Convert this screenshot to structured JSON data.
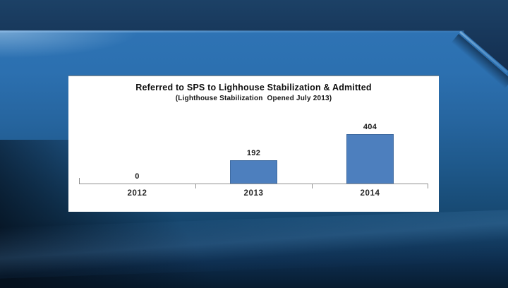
{
  "chart_data": {
    "type": "bar",
    "title": "Referred to SPS to Lighhouse Stabilization & Admitted",
    "subtitle": "(Lighthouse Stabilization  Opened July 2013)",
    "categories": [
      "2012",
      "2013",
      "2014"
    ],
    "values": [
      0,
      192,
      404
    ],
    "xlabel": "",
    "ylabel": "",
    "ylim": [
      0,
      430
    ],
    "grid": false,
    "legend": false,
    "bar_color": "#4d7fbe",
    "bar_border_color": "#3e6aa0",
    "axis_color": "#8f8f8f",
    "label_color": "#1a1a1a"
  },
  "background": {
    "style": "broadcast blue gradient with navy top band and swoosh",
    "top_band_color": "#0c1f38",
    "bright_band_color": "#2e73b4",
    "mid_color": "#1e588a",
    "bottom_color": "#071c30",
    "panel_color": "#ffffff"
  }
}
